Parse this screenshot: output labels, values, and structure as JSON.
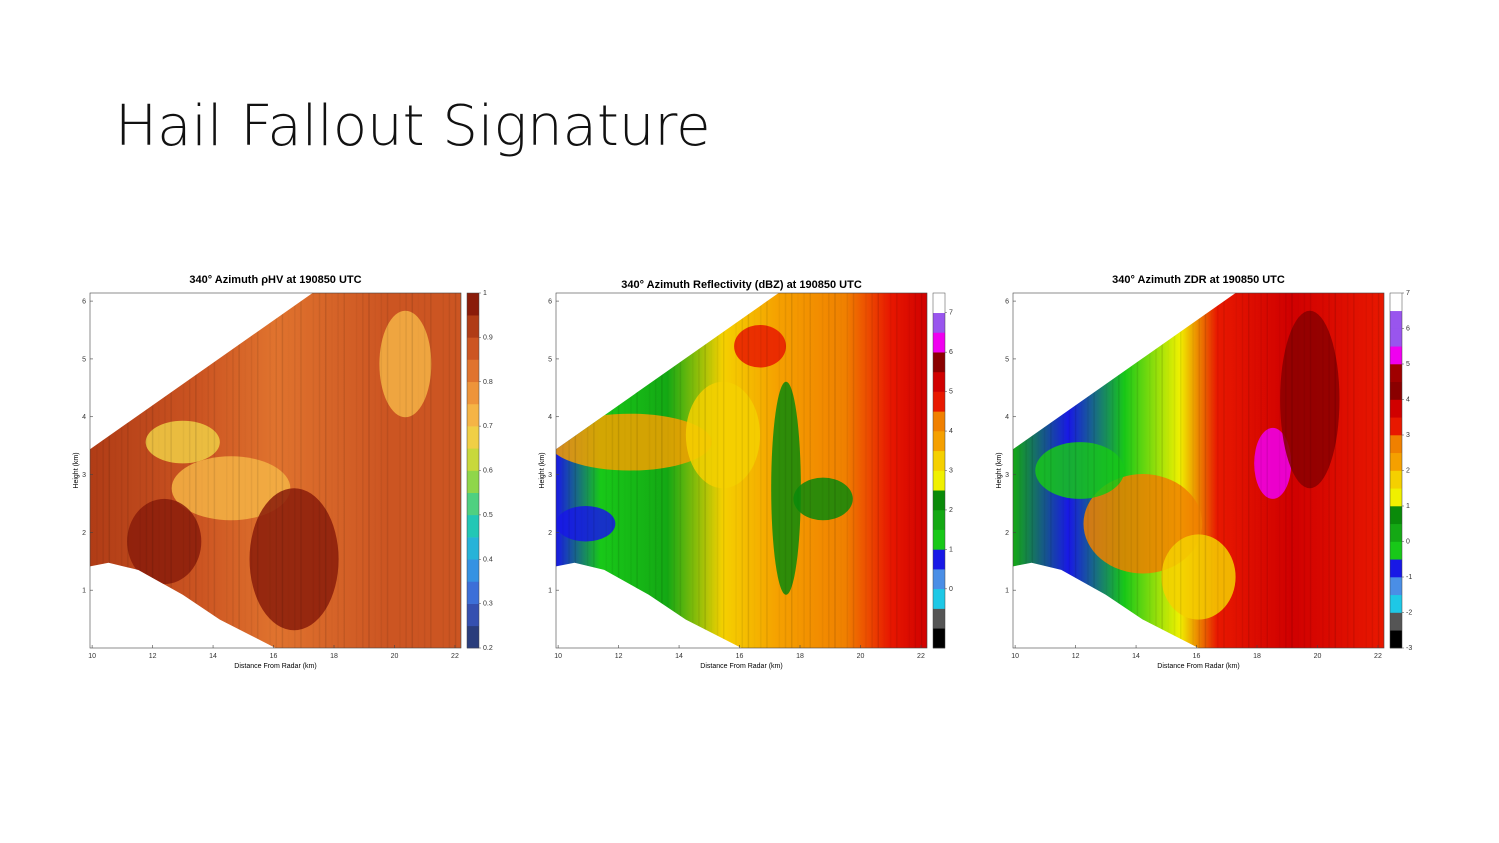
{
  "title": "Hail Fallout Signature",
  "chart_data": [
    {
      "type": "heatmap",
      "title": "340° Azimuth ρHV at 190850 UTC",
      "xlabel": "Distance From Radar (km)",
      "ylabel": "Height (km)",
      "xlim": [
        9.93,
        22.2
      ],
      "xticks": [
        10,
        12,
        14,
        16,
        18,
        20,
        22
      ],
      "ylim": [
        0,
        6.14
      ],
      "yticks": [
        1,
        2,
        3,
        4,
        5,
        6
      ],
      "clim": [
        0.2,
        1
      ],
      "cticks": [
        0.2,
        0.3,
        0.4,
        0.5,
        0.6,
        0.7,
        0.8,
        0.9,
        1
      ],
      "colors": [
        "#2a3d7c",
        "#3550b0",
        "#3c6fd8",
        "#3592e2",
        "#27b3d8",
        "#22c7b5",
        "#4fd080",
        "#8fd64a",
        "#c8d83c",
        "#f0cf45",
        "#f5b445",
        "#ee943a",
        "#e0732e",
        "#cc5522",
        "#b03c16",
        "#8a1c0a"
      ]
    },
    {
      "type": "heatmap",
      "title": "340° Azimuth Reflectivity (dBZ) at 190850 UTC",
      "xlabel": "Distance From Radar (km)",
      "ylabel": "Height (km)",
      "xlim": [
        9.93,
        22.2
      ],
      "xticks": [
        10,
        12,
        14,
        16,
        18,
        20,
        22
      ],
      "ylim": [
        0,
        6.14
      ],
      "yticks": [
        1,
        2,
        3,
        4,
        5,
        6
      ],
      "clim": [
        -1.5,
        7.5
      ],
      "cticks": [
        0,
        1,
        2,
        3,
        4,
        5,
        6,
        7
      ],
      "colors": [
        "#000000",
        "#555555",
        "#1ec8e6",
        "#4a8ee6",
        "#1818e6",
        "#18c818",
        "#14a814",
        "#0a8a0a",
        "#f0f000",
        "#f5d000",
        "#f5a000",
        "#f08000",
        "#e81800",
        "#d00000",
        "#8a0000",
        "#f000f0",
        "#9955ee",
        "#ffffff"
      ]
    },
    {
      "type": "heatmap",
      "title": "340° Azimuth ZDR at 190850 UTC",
      "xlabel": "Distance From Radar (km)",
      "ylabel": "Height (km)",
      "xlim": [
        9.93,
        22.2
      ],
      "xticks": [
        10,
        12,
        14,
        16,
        18,
        20,
        22
      ],
      "ylim": [
        0,
        6.14
      ],
      "yticks": [
        1,
        2,
        3,
        4,
        5,
        6
      ],
      "clim": [
        -3,
        7
      ],
      "cticks": [
        -3,
        -2,
        -1,
        0,
        1,
        2,
        3,
        4,
        5,
        6,
        7
      ],
      "colors": [
        "#000000",
        "#555555",
        "#1ec8e6",
        "#4a8ee6",
        "#1818e6",
        "#18c818",
        "#14a814",
        "#0a8a0a",
        "#f0f000",
        "#f5d000",
        "#f5a000",
        "#f08000",
        "#e81800",
        "#d00000",
        "#8a0000",
        "#a00000",
        "#f000f0",
        "#9955ee",
        "#9955ee",
        "#ffffff"
      ]
    }
  ]
}
